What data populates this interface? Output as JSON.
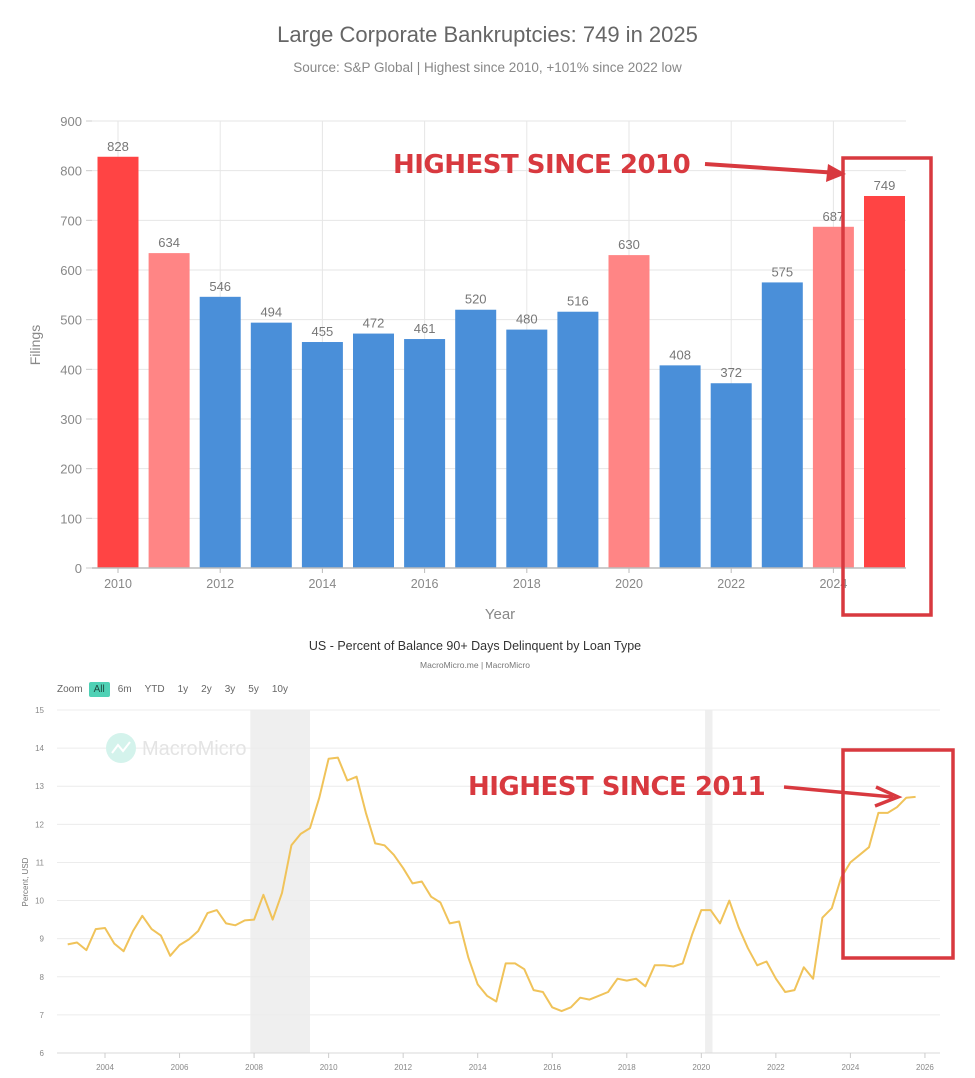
{
  "bar_chart": {
    "title": "Large Corporate Bankruptcies: 749 in 2025",
    "subtitle": "Source: S&P Global | Highest since 2010, +101% since 2022 low",
    "ylabel": "Filings",
    "xlabel": "Year",
    "y_ticks": [
      "0",
      "100",
      "200",
      "300",
      "400",
      "500",
      "600",
      "700",
      "800",
      "900"
    ],
    "x_ticks": [
      "2010",
      "2012",
      "2014",
      "2016",
      "2018",
      "2020",
      "2022",
      "2024"
    ],
    "annotation": "HIGHEST SINCE 2010",
    "colors": {
      "high": "#ff4444",
      "elevated": "#ff8585",
      "normal": "#4a8fd9",
      "annotation": "#d8393f"
    }
  },
  "line_chart": {
    "title": "US - Percent of Balance 90+ Days Delinquent by Loan Type",
    "subtitle": "MacroMicro.me | MacroMicro",
    "watermark": "MacroMicro",
    "ylabel": "Percent, USD",
    "zoom_label": "Zoom",
    "zoom_options": [
      "All",
      "6m",
      "YTD",
      "1y",
      "2y",
      "3y",
      "5y",
      "10y"
    ],
    "zoom_selected": "All",
    "y_ticks": [
      "6",
      "7",
      "8",
      "9",
      "10",
      "11",
      "12",
      "13",
      "14",
      "15"
    ],
    "x_ticks": [
      "2004",
      "2006",
      "2008",
      "2010",
      "2012",
      "2014",
      "2016",
      "2018",
      "2020",
      "2022",
      "2024",
      "2026"
    ],
    "annotation": "HIGHEST SINCE 2011",
    "colors": {
      "line": "#f0c35a",
      "recession": "#efefef",
      "annotation": "#d8393f",
      "zoom_active": "#4fd1b5"
    }
  },
  "chart_data": [
    {
      "type": "bar",
      "title": "Large Corporate Bankruptcies: 749 in 2025",
      "subtitle": "Source: S&P Global | Highest since 2010, +101% since 2022 low",
      "xlabel": "Year",
      "ylabel": "Filings",
      "ylim": [
        0,
        900
      ],
      "grid": true,
      "categories": [
        "2010",
        "2011",
        "2012",
        "2013",
        "2014",
        "2015",
        "2016",
        "2017",
        "2018",
        "2019",
        "2020",
        "2021",
        "2022",
        "2023",
        "2024",
        "2025"
      ],
      "values": [
        828,
        634,
        546,
        494,
        455,
        472,
        461,
        520,
        480,
        516,
        630,
        408,
        372,
        575,
        687,
        749
      ],
      "bar_colors": [
        "#ff4444",
        "#ff8585",
        "#4a8fd9",
        "#4a8fd9",
        "#4a8fd9",
        "#4a8fd9",
        "#4a8fd9",
        "#4a8fd9",
        "#4a8fd9",
        "#4a8fd9",
        "#ff8585",
        "#4a8fd9",
        "#4a8fd9",
        "#4a8fd9",
        "#ff8585",
        "#ff4444"
      ],
      "annotations": [
        {
          "text": "HIGHEST SINCE 2010",
          "target": "2025",
          "style": "red box + arrow"
        }
      ]
    },
    {
      "type": "line",
      "title": "US - Percent of Balance 90+ Days Delinquent by Loan Type",
      "subtitle": "MacroMicro.me | MacroMicro",
      "xlabel": "",
      "ylabel": "Percent, USD",
      "ylim": [
        6,
        15
      ],
      "xlim": [
        2003,
        2026
      ],
      "grid": true,
      "shaded_periods": [
        [
          2007.9,
          2009.5
        ],
        [
          2020.1,
          2020.3
        ]
      ],
      "series": [
        {
          "name": "Percent of Balance 90+ Days Delinquent",
          "x": [
            2003.0,
            2003.25,
            2003.5,
            2003.75,
            2004.0,
            2004.25,
            2004.5,
            2004.75,
            2005.0,
            2005.25,
            2005.5,
            2005.75,
            2006.0,
            2006.25,
            2006.5,
            2006.75,
            2007.0,
            2007.25,
            2007.5,
            2007.75,
            2008.0,
            2008.25,
            2008.5,
            2008.75,
            2009.0,
            2009.25,
            2009.5,
            2009.75,
            2010.0,
            2010.25,
            2010.5,
            2010.75,
            2011.0,
            2011.25,
            2011.5,
            2011.75,
            2012.0,
            2012.25,
            2012.5,
            2012.75,
            2013.0,
            2013.25,
            2013.5,
            2013.75,
            2014.0,
            2014.25,
            2014.5,
            2014.75,
            2015.0,
            2015.25,
            2015.5,
            2015.75,
            2016.0,
            2016.25,
            2016.5,
            2016.75,
            2017.0,
            2017.25,
            2017.5,
            2017.75,
            2018.0,
            2018.25,
            2018.5,
            2018.75,
            2019.0,
            2019.25,
            2019.5,
            2019.75,
            2020.0,
            2020.25,
            2020.5,
            2020.75,
            2021.0,
            2021.25,
            2021.5,
            2021.75,
            2022.0,
            2022.25,
            2022.5,
            2022.75,
            2023.0,
            2023.25,
            2023.5,
            2023.75,
            2024.0,
            2024.25,
            2024.5,
            2024.75,
            2025.0,
            2025.25,
            2025.5,
            2025.75
          ],
          "y": [
            8.85,
            8.9,
            8.7,
            9.25,
            9.28,
            8.87,
            8.67,
            9.2,
            9.6,
            9.25,
            9.08,
            8.55,
            8.83,
            8.98,
            9.2,
            9.67,
            9.75,
            9.4,
            9.35,
            9.48,
            9.5,
            10.15,
            9.5,
            10.2,
            11.45,
            11.75,
            11.9,
            12.7,
            13.72,
            13.75,
            13.15,
            13.25,
            12.3,
            11.5,
            11.45,
            11.2,
            10.85,
            10.45,
            10.5,
            10.1,
            9.95,
            9.4,
            9.45,
            8.5,
            7.8,
            7.5,
            7.35,
            8.35,
            8.35,
            8.2,
            7.65,
            7.6,
            7.2,
            7.1,
            7.2,
            7.45,
            7.4,
            7.5,
            7.6,
            7.95,
            7.9,
            7.95,
            7.75,
            8.3,
            8.3,
            8.27,
            8.35,
            9.1,
            9.75,
            9.75,
            9.4,
            10.0,
            9.3,
            8.75,
            8.3,
            8.4,
            7.95,
            7.6,
            7.65,
            8.25,
            7.95,
            9.55,
            9.8,
            10.6,
            11.0,
            11.2,
            11.4,
            12.3,
            12.3,
            12.45,
            12.7,
            12.72
          ]
        }
      ],
      "annotations": [
        {
          "text": "HIGHEST SINCE 2011",
          "target": "2025",
          "style": "red box + arrow"
        }
      ]
    }
  ]
}
